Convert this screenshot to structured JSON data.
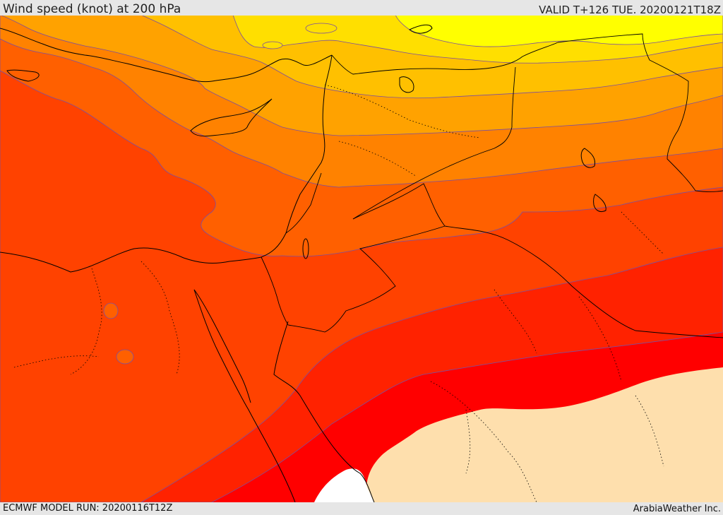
{
  "header": {
    "title": "Wind speed (knot) at 200 hPa",
    "valid": "VALID T+126 TUE. 20200121T18Z"
  },
  "footer": {
    "model_run": "ECMWF MODEL RUN: 20200116T12Z",
    "credit": "ArabiaWeather Inc."
  },
  "map": {
    "variable": "wind speed at 200 hPa",
    "fill_colors": {
      "yellow": "#ffff00",
      "gold": "#ffdf00",
      "light_orange": "#ffc000",
      "orange": "#ffa200",
      "dark_orange": "#ff8200",
      "orange_red": "#ff6000",
      "red_orange": "#ff4200",
      "red": "#ff2200",
      "pure_red": "#ff0000",
      "land_beige": "#fedfad",
      "sea_white": "#ffffff"
    },
    "contour_line_color": "#7b4fa0",
    "coastline_color": "#000000"
  }
}
